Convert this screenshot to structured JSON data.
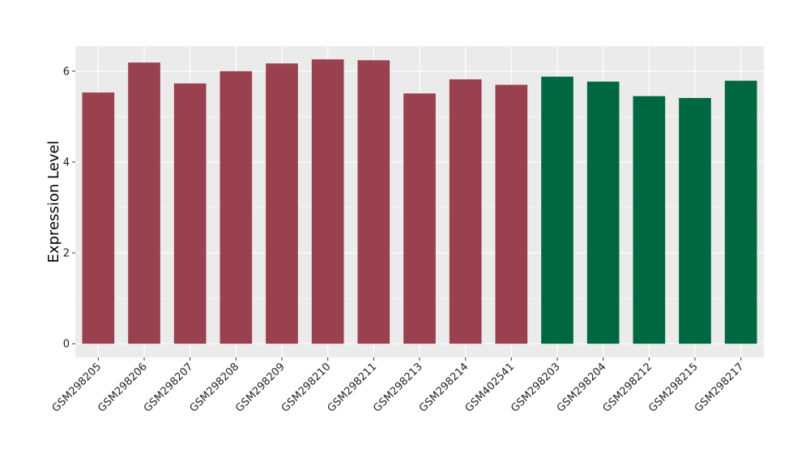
{
  "chart_data": {
    "type": "bar",
    "title": "",
    "xlabel": "",
    "ylabel": "Expression Level",
    "ylim": [
      -0.3,
      6.55
    ],
    "yticks": [
      0,
      2,
      4,
      6
    ],
    "grid": true,
    "colors": {
      "panel_bg": "#ebebeb",
      "grid": "#ffffff"
    },
    "categories": [
      "GSM298205",
      "GSM298206",
      "GSM298207",
      "GSM298208",
      "GSM298209",
      "GSM298210",
      "GSM298211",
      "GSM298213",
      "GSM298214",
      "GSM402541",
      "GSM298203",
      "GSM298204",
      "GSM298212",
      "GSM298215",
      "GSM298217"
    ],
    "values": [
      5.53,
      6.19,
      5.73,
      6.0,
      6.17,
      6.26,
      6.24,
      5.51,
      5.82,
      5.7,
      5.88,
      5.77,
      5.45,
      5.41,
      5.79
    ],
    "bar_colors": [
      "#9a4150",
      "#9a4150",
      "#9a4150",
      "#9a4150",
      "#9a4150",
      "#9a4150",
      "#9a4150",
      "#9a4150",
      "#9a4150",
      "#9a4150",
      "#006841",
      "#006841",
      "#006841",
      "#006841",
      "#006841"
    ]
  }
}
